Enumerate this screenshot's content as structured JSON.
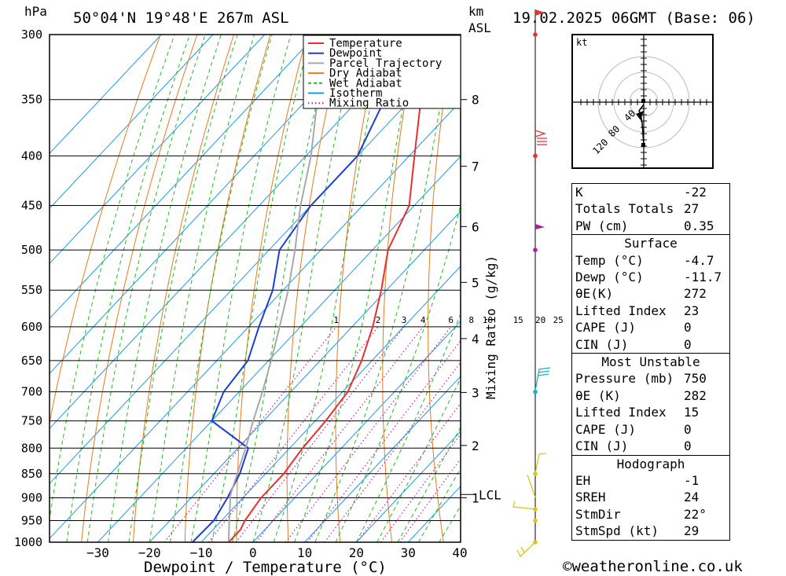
{
  "header": {
    "hpa_label": "hPa",
    "location": "50°04'N 19°48'E 267m ASL",
    "km_label": "km",
    "asl_label": "ASL",
    "datetime": "19.02.2025 06GMT (Base: 06)"
  },
  "chart_data": {
    "type": "line",
    "xlabel": "Dewpoint / Temperature (°C)",
    "ylabel": "hPa",
    "mixing_ratio_label": "Mixing Ratio (g/kg)",
    "pressure_levels": [
      300,
      350,
      400,
      450,
      500,
      550,
      600,
      650,
      700,
      750,
      800,
      850,
      900,
      950,
      1000
    ],
    "x_ticks": [
      -30,
      -20,
      -10,
      0,
      10,
      20,
      30,
      40
    ],
    "xlim": [
      -40,
      40
    ],
    "ylim_hpa": [
      1000,
      300
    ],
    "km_ticks": [
      {
        "km": 8,
        "p": 350
      },
      {
        "km": 7,
        "p": 410
      },
      {
        "km": 6,
        "p": 473
      },
      {
        "km": 5,
        "p": 540
      },
      {
        "km": 4,
        "p": 617
      },
      {
        "km": 3,
        "p": 701
      },
      {
        "km": 2,
        "p": 795
      },
      {
        "km": 1,
        "p": 900
      }
    ],
    "lcl": {
      "label": "LCL",
      "p": 893
    },
    "mixing_ratio_values": [
      "1",
      "2",
      "3",
      "4",
      "6",
      "8",
      "10",
      "15",
      "20",
      "25"
    ],
    "legend": [
      {
        "name": "Temperature",
        "color": "#e8312f",
        "style": "solid"
      },
      {
        "name": "Dewpoint",
        "color": "#1a3fd6",
        "style": "solid"
      },
      {
        "name": "Parcel Trajectory",
        "color": "#a8a8a8",
        "style": "solid"
      },
      {
        "name": "Dry Adiabat",
        "color": "#e87a1a",
        "style": "solid"
      },
      {
        "name": "Wet Adiabat",
        "color": "#1fbb1f",
        "style": "dashed"
      },
      {
        "name": "Isotherm",
        "color": "#1a9ae8",
        "style": "solid"
      },
      {
        "name": "Mixing Ratio",
        "color": "#cc1a99",
        "style": "dotted"
      }
    ],
    "series": [
      {
        "name": "Temperature",
        "color": "#e8312f",
        "points": [
          [
            1000,
            -4.7
          ],
          [
            970,
            -4.7
          ],
          [
            950,
            -5.5
          ],
          [
            900,
            -6.5
          ],
          [
            850,
            -6.5
          ],
          [
            800,
            -7.5
          ],
          [
            750,
            -8
          ],
          [
            700,
            -9
          ],
          [
            650,
            -12
          ],
          [
            600,
            -16
          ],
          [
            550,
            -21
          ],
          [
            500,
            -27
          ],
          [
            450,
            -31
          ],
          [
            400,
            -39
          ],
          [
            350,
            -48
          ],
          [
            300,
            -59
          ]
        ]
      },
      {
        "name": "Dewpoint",
        "color": "#1a3fd6",
        "points": [
          [
            1000,
            -11.7
          ],
          [
            950,
            -11.5
          ],
          [
            900,
            -13
          ],
          [
            850,
            -15
          ],
          [
            800,
            -18
          ],
          [
            750,
            -30
          ],
          [
            700,
            -33
          ],
          [
            650,
            -34
          ],
          [
            600,
            -38
          ],
          [
            550,
            -42
          ],
          [
            500,
            -48
          ],
          [
            450,
            -50
          ],
          [
            400,
            -50
          ],
          [
            350,
            -55
          ],
          [
            300,
            -66
          ]
        ]
      },
      {
        "name": "Parcel Trajectory",
        "color": "#a8a8a8",
        "points": [
          [
            1000,
            -4.7
          ],
          [
            950,
            -8.5
          ],
          [
            893,
            -13
          ],
          [
            850,
            -15.5
          ],
          [
            800,
            -18.5
          ],
          [
            750,
            -22
          ],
          [
            700,
            -25.5
          ],
          [
            650,
            -29.5
          ],
          [
            600,
            -34
          ],
          [
            550,
            -39
          ],
          [
            500,
            -45
          ],
          [
            450,
            -52
          ],
          [
            400,
            -59
          ],
          [
            350,
            -68
          ],
          [
            300,
            -78
          ]
        ]
      }
    ]
  },
  "hodograph": {
    "unit_label": "kt",
    "ring_labels": [
      "40",
      "80",
      "120"
    ]
  },
  "indices": {
    "k": {
      "label": "K",
      "value": "-22"
    },
    "tt": {
      "label": "Totals Totals",
      "value": "27"
    },
    "pw": {
      "label": "PW (cm)",
      "value": "0.35"
    },
    "surface": {
      "title": "Surface",
      "temp": {
        "label": "Temp (°C)",
        "value": "-4.7"
      },
      "dewp": {
        "label": "Dewp (°C)",
        "value": "-11.7"
      },
      "theta": {
        "label": "θE(K)",
        "value": "272"
      },
      "li": {
        "label": "Lifted Index",
        "value": "23"
      },
      "cape": {
        "label": "CAPE (J)",
        "value": "0"
      },
      "cin": {
        "label": "CIN (J)",
        "value": "0"
      }
    },
    "mu": {
      "title": "Most Unstable",
      "pressure": {
        "label": "Pressure (mb)",
        "value": "750"
      },
      "theta": {
        "label": "θE (K)",
        "value": "282"
      },
      "li": {
        "label": "Lifted Index",
        "value": "15"
      },
      "cape": {
        "label": "CAPE (J)",
        "value": "0"
      },
      "cin": {
        "label": "CIN (J)",
        "value": "0"
      }
    },
    "hodo": {
      "title": "Hodograph",
      "eh": {
        "label": "EH",
        "value": "-1"
      },
      "sreh": {
        "label": "SREH",
        "value": "24"
      },
      "stmdir": {
        "label": "StmDir",
        "value": "22°"
      },
      "stmspd": {
        "label": "StmSpd (kt)",
        "value": "29"
      }
    }
  },
  "wind_profile": {
    "levels": [
      {
        "p": 300,
        "color": "#e8312f"
      },
      {
        "p": 400,
        "color": "#e8312f"
      },
      {
        "p": 500,
        "color": "#b01aa8"
      },
      {
        "p": 700,
        "color": "#19b5c5"
      },
      {
        "p": 850,
        "color": "#d8c81a"
      },
      {
        "p": 925,
        "color": "#d8c81a"
      },
      {
        "p": 950,
        "color": "#d8c81a"
      },
      {
        "p": 1000,
        "color": "#d8c81a"
      }
    ]
  },
  "credit": "©weatheronline.co.uk"
}
